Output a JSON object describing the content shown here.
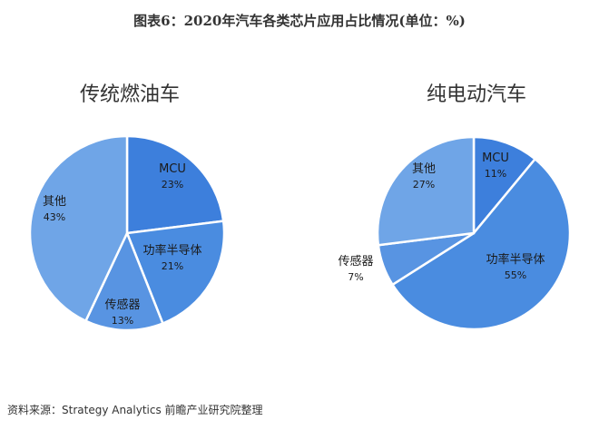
{
  "title": "图表6：2020年汽车各类芯片应用占比情况(单位：%)",
  "source": "资料来源：Strategy Analytics 前瞻产业研究院整理",
  "chart_data": [
    {
      "type": "pie",
      "title": "传统燃油车",
      "categories": [
        "MCU",
        "功率半导体",
        "传感器",
        "其他"
      ],
      "values": [
        23,
        21,
        13,
        43
      ],
      "value_labels": [
        "23%",
        "21%",
        "13%",
        "43%"
      ],
      "colors": [
        "#3d7fdc",
        "#4a8ce0",
        "#5894e2",
        "#6fa5e7"
      ],
      "start": "12 o'clock",
      "direction": "clockwise"
    },
    {
      "type": "pie",
      "title": "纯电动汽车",
      "categories": [
        "MCU",
        "功率半导体",
        "传感器",
        "其他"
      ],
      "values": [
        11,
        55,
        7,
        27
      ],
      "value_labels": [
        "11%",
        "55%",
        "7%",
        "27%"
      ],
      "colors": [
        "#3d7fdc",
        "#4a8ce0",
        "#5894e2",
        "#6fa5e7"
      ],
      "start": "12 o'clock",
      "direction": "clockwise"
    }
  ]
}
